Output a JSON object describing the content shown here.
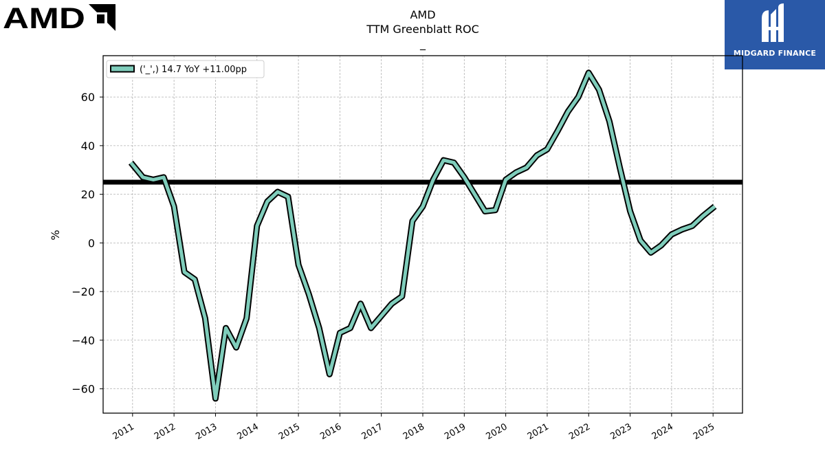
{
  "logo": {
    "text": "AMD",
    "name": "AMD"
  },
  "brand": {
    "name": "MIDGARD FINANCE",
    "bg_color": "#2a59a8"
  },
  "colors": {
    "line": "#7fcdbb",
    "line_outline": "#000000",
    "reference": "#000000",
    "grid": "#b0b0b0"
  },
  "chart_data": {
    "type": "line",
    "title": "AMD",
    "subtitle": "TTM Greenblatt ROC",
    "subtitle2": "_",
    "ylabel": "%",
    "xlabel": "",
    "ylim": [
      -70,
      77
    ],
    "xlim": [
      2010.29,
      2025.71
    ],
    "yticks": [
      -60,
      -40,
      -20,
      0,
      20,
      40,
      60
    ],
    "xticks": [
      {
        "label": "2011",
        "x": 2011.0
      },
      {
        "label": "2012",
        "x": 2012.0
      },
      {
        "label": "2013",
        "x": 2013.0
      },
      {
        "label": "2014",
        "x": 2014.0
      },
      {
        "label": "2015",
        "x": 2015.0
      },
      {
        "label": "2016",
        "x": 2016.0
      },
      {
        "label": "2017",
        "x": 2017.0
      },
      {
        "label": "2018",
        "x": 2018.0
      },
      {
        "label": "2019",
        "x": 2019.0
      },
      {
        "label": "2020",
        "x": 2020.0
      },
      {
        "label": "2021",
        "x": 2021.0
      },
      {
        "label": "2022",
        "x": 2022.0
      },
      {
        "label": "2023",
        "x": 2023.0
      },
      {
        "label": "2024",
        "x": 2024.0
      },
      {
        "label": "2025",
        "x": 2025.0
      }
    ],
    "grid": true,
    "legend_position": "top-left",
    "reference_line": 25,
    "series": [
      {
        "name": "('_',) 14.7 YoY +11.00pp",
        "x": [
          2010.96,
          2011.25,
          2011.5,
          2011.75,
          2012.0,
          2012.25,
          2012.5,
          2012.75,
          2013.0,
          2013.25,
          2013.5,
          2013.75,
          2014.0,
          2014.25,
          2014.5,
          2014.75,
          2015.0,
          2015.25,
          2015.5,
          2015.75,
          2016.0,
          2016.25,
          2016.5,
          2016.75,
          2017.0,
          2017.25,
          2017.5,
          2017.75,
          2018.0,
          2018.25,
          2018.5,
          2018.75,
          2019.0,
          2019.25,
          2019.5,
          2019.75,
          2020.0,
          2020.25,
          2020.5,
          2020.75,
          2021.0,
          2021.25,
          2021.5,
          2021.75,
          2022.0,
          2022.25,
          2022.5,
          2022.75,
          2023.0,
          2023.25,
          2023.5,
          2023.75,
          2024.0,
          2024.25,
          2024.5,
          2024.75,
          2025.04
        ],
        "values": [
          33,
          27,
          26,
          27,
          15,
          -12,
          -15,
          -31,
          -64,
          -35,
          -43,
          -31,
          7,
          17,
          21,
          19,
          -9,
          -21,
          -35,
          -54,
          -37,
          -35,
          -25,
          -35,
          -30,
          -25,
          -22,
          9,
          15,
          26,
          34,
          33,
          27,
          20,
          13,
          13.5,
          26,
          29,
          31,
          36,
          38.5,
          46,
          54,
          60,
          70,
          63,
          50,
          31,
          13,
          1,
          -4,
          -1,
          3.5,
          5.5,
          7,
          11,
          15
        ]
      }
    ]
  }
}
